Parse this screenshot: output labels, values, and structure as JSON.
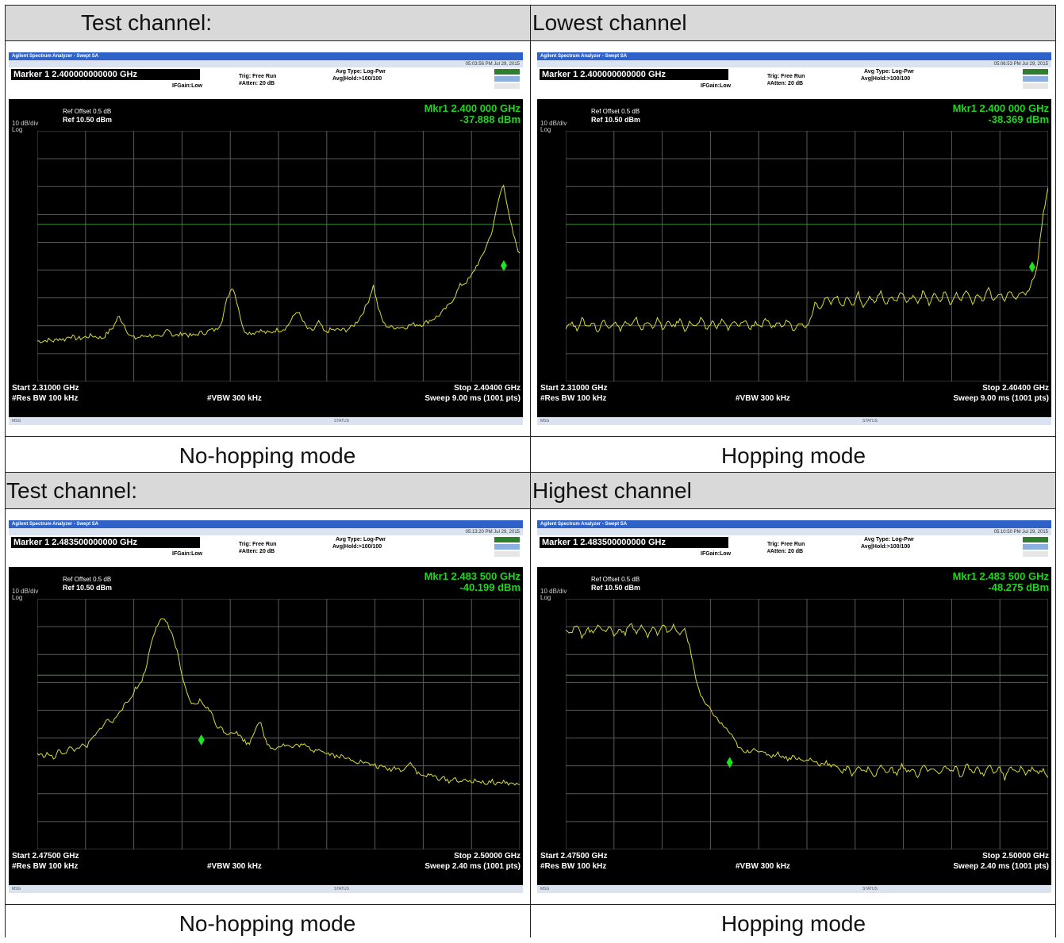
{
  "cells": [
    {
      "header": "Test channel:",
      "caption": "No-hopping mode",
      "analyzer": {
        "app_title": "Agilent Spectrum Analyzer - Swept SA",
        "marker_line": "Marker 1  2.400000000000 GHz",
        "pno": "PNO: Fast",
        "ifgain": "IFGain:Low",
        "trig": "Trig: Free Run",
        "atten": "#Atten: 20 dB",
        "avg_type": "Avg Type: Log-Pwr",
        "avg_hold": "Avg|Hold:>100/100",
        "timestamp": "05:03:56 PM Jul 29, 2015",
        "ref_offset": "Ref Offset 0.5 dB",
        "ref_level": "Ref 10.50 dBm",
        "scale": "10 dB/div",
        "log": "Log",
        "mkr_freq": "Mkr1 2.400 000 GHz",
        "mkr_level": "-37.888 dBm",
        "start": "Start 2.31000 GHz",
        "rbw": "#Res BW 100 kHz",
        "vbw": "#VBW 300 kHz",
        "stop": "Stop 2.40400 GHz",
        "sweep": "Sweep  9.00 ms (1001 pts)",
        "status": "STATUS",
        "msg": "MSG"
      },
      "chart_data": {
        "type": "line",
        "series": [
          {
            "values": [
              -65,
              -65,
              -64.5,
              -65,
              -64,
              -64.5,
              -63,
              -64,
              -64,
              -63.5,
              -63,
              -63.5,
              -64,
              -62,
              -60,
              -56,
              -59,
              -63,
              -64,
              -63.5,
              -63,
              -63,
              -63.5,
              -64,
              -60,
              -63,
              -63,
              -62,
              -63,
              -63,
              -62,
              -62,
              -61,
              -61,
              -58,
              -50,
              -45,
              -52,
              -61,
              -62,
              -62,
              -61,
              -62,
              -62,
              -61,
              -61,
              -60,
              -57,
              -54,
              -58,
              -61,
              -61,
              -58,
              -62,
              -61,
              -61,
              -61,
              -61,
              -60,
              -58,
              -55,
              -51,
              -45,
              -54,
              -59,
              -60,
              -60,
              -60,
              -60,
              -59,
              -59,
              -59,
              -58,
              -57,
              -56,
              -54,
              -52,
              -49,
              -45,
              -44,
              -42,
              -38,
              -35,
              -30,
              -25,
              -15,
              -8,
              -20,
              -28,
              -34
            ]
          }
        ],
        "x": {
          "start_ghz": 2.31,
          "stop_ghz": 2.404
        },
        "ylim": [
          -79.5,
          10.5
        ],
        "display_line_dbm": -23.12,
        "marker": {
          "x_fraction": 0.967,
          "y_dbm": -37.888
        },
        "trace_color": "#d9d93a"
      }
    },
    {
      "header": "Lowest channel",
      "caption": "Hopping mode",
      "analyzer": {
        "app_title": "Agilent Spectrum Analyzer - Swept SA",
        "marker_line": "Marker 1  2.400000000000 GHz",
        "pno": "PNO: Fast",
        "ifgain": "IFGain:Low",
        "trig": "Trig: Free Run",
        "atten": "#Atten: 20 dB",
        "avg_type": "Avg Type: Log-Pwr",
        "avg_hold": "Avg|Hold:>100/100",
        "timestamp": "05:06:53 PM Jul 29, 2015",
        "ref_offset": "Ref Offset 0.5 dB",
        "ref_level": "Ref 10.50 dBm",
        "scale": "10 dB/div",
        "log": "Log",
        "mkr_freq": "Mkr1 2.400 000 GHz",
        "mkr_level": "-38.369 dBm",
        "start": "Start 2.31000 GHz",
        "rbw": "#Res BW 100 kHz",
        "vbw": "#VBW 300 kHz",
        "stop": "Stop 2.40400 GHz",
        "sweep": "Sweep  9.00 ms (1001 pts)",
        "status": "STATUS",
        "msg": "MSG"
      },
      "chart_data": {
        "type": "line",
        "series": [
          {
            "values": [
              -60,
              -58,
              -61,
              -57,
              -60,
              -58,
              -62,
              -57,
              -60,
              -58,
              -61,
              -58,
              -60,
              -57,
              -61,
              -58,
              -60,
              -57,
              -61,
              -58,
              -60,
              -57,
              -61,
              -58,
              -60,
              -57,
              -61,
              -58,
              -60,
              -57,
              -61,
              -58,
              -60,
              -57,
              -61,
              -58,
              -60,
              -57,
              -61,
              -58,
              -60,
              -57,
              -61,
              -58,
              -60,
              -58,
              -51,
              -53,
              -49,
              -52,
              -48,
              -53,
              -49,
              -52,
              -48,
              -53,
              -49,
              -51,
              -47,
              -52,
              -49,
              -51,
              -47,
              -52,
              -48,
              -51,
              -47,
              -52,
              -48,
              -51,
              -47,
              -52,
              -48,
              -51,
              -46,
              -52,
              -48,
              -51,
              -46,
              -51,
              -48,
              -50,
              -46,
              -51,
              -47,
              -48,
              -44,
              -38,
              -20,
              -10
            ]
          }
        ],
        "x": {
          "start_ghz": 2.31,
          "stop_ghz": 2.404
        },
        "ylim": [
          -79.5,
          10.5
        ],
        "display_line_dbm": -23.12,
        "marker": {
          "x_fraction": 0.967,
          "y_dbm": -38.369
        },
        "trace_color": "#d9d93a"
      }
    },
    {
      "header": "Test channel:",
      "caption": "No-hopping mode",
      "analyzer": {
        "app_title": "Agilent Spectrum Analyzer - Swept SA",
        "marker_line": "Marker 1  2.483500000000 GHz",
        "pno": "PNO: Fast",
        "ifgain": "IFGain:Low",
        "trig": "Trig: Free Run",
        "atten": "#Atten: 20 dB",
        "avg_type": "Avg Type: Log-Pwr",
        "avg_hold": "Avg|Hold:>100/100",
        "timestamp": "05:13:20 PM Jul 29, 2015",
        "ref_offset": "Ref Offset 0.5 dB",
        "ref_level": "Ref 10.50 dBm",
        "scale": "10 dB/div",
        "log": "Log",
        "mkr_freq": "Mkr1 2.483 500 GHz",
        "mkr_level": "-40.199 dBm",
        "start": "Start 2.47500 GHz",
        "rbw": "#Res BW 100 kHz",
        "vbw": "#VBW 300 kHz",
        "stop": "Stop 2.50000 GHz",
        "sweep": "Sweep  2.40 ms (1001 pts)",
        "status": "STATUS",
        "msg": "MSG"
      },
      "chart_data": {
        "type": "line",
        "series": [
          {
            "values": [
              -45,
              -46,
              -45,
              -47,
              -44,
              -45,
              -43,
              -44,
              -42,
              -43,
              -40,
              -38,
              -35,
              -33,
              -34,
              -30,
              -28,
              -26,
              -22,
              -20,
              -15,
              -5,
              1,
              3,
              2,
              -3,
              -10,
              -20,
              -26,
              -28,
              -26,
              -28,
              -30,
              -35,
              -36,
              -38,
              -37,
              -38,
              -40,
              -42,
              -37,
              -33,
              -40,
              -43,
              -43,
              -42,
              -42,
              -43,
              -42,
              -42,
              -43,
              -44,
              -43,
              -45,
              -45,
              -46,
              -46,
              -47,
              -47,
              -48,
              -48,
              -49,
              -49,
              -50,
              -50,
              -51,
              -50,
              -51,
              -50,
              -48,
              -52,
              -53,
              -53,
              -53,
              -54,
              -54,
              -55,
              -54,
              -55,
              -55,
              -55,
              -55,
              -55,
              -56,
              -55,
              -56,
              -55,
              -56,
              -56,
              -56
            ]
          }
        ],
        "x": {
          "start_ghz": 2.475,
          "stop_ghz": 2.5
        },
        "ylim": [
          -79.5,
          10.5
        ],
        "display_line_dbm": -16.9,
        "marker": {
          "x_fraction": 0.34,
          "y_dbm": -40.199
        },
        "trace_color": "#d9d93a"
      }
    },
    {
      "header": "Highest channel",
      "caption": "Hopping mode",
      "analyzer": {
        "app_title": "Agilent Spectrum Analyzer - Swept SA",
        "marker_line": "Marker 1  2.483500000000 GHz",
        "pno": "PNO: Fast",
        "ifgain": "IFGain:Low",
        "trig": "Trig: Free Run",
        "atten": "#Atten: 20 dB",
        "avg_type": "Avg Type: Log-Pwr",
        "avg_hold": "Avg|Hold:>100/100",
        "timestamp": "05:10:50 PM Jul 29, 2015",
        "ref_offset": "Ref Offset 0.5 dB",
        "ref_level": "Ref 10.50 dBm",
        "scale": "10 dB/div",
        "log": "Log",
        "mkr_freq": "Mkr1 2.483 500 GHz",
        "mkr_level": "-48.275 dBm",
        "start": "Start 2.47500 GHz",
        "rbw": "#Res BW 100 kHz",
        "vbw": "#VBW 300 kHz",
        "stop": "Stop 2.50000 GHz",
        "sweep": "Sweep  2.40 ms (1001 pts)",
        "status": "STATUS",
        "msg": "MSG"
      },
      "chart_data": {
        "type": "line",
        "series": [
          {
            "values": [
              0,
              -2,
              1,
              -3,
              0,
              -2,
              2,
              -2,
              1,
              -3,
              0,
              -2,
              2,
              -2,
              1,
              -3,
              0,
              -2,
              2,
              -2,
              1,
              -3,
              0,
              -8,
              -18,
              -25,
              -28,
              -30,
              -33,
              -35,
              -37,
              -40,
              -43,
              -45,
              -44,
              -43,
              -45,
              -45,
              -46,
              -45,
              -46,
              -47,
              -46,
              -47,
              -48,
              -47,
              -48,
              -49,
              -48,
              -50,
              -49,
              -52,
              -50,
              -53,
              -49,
              -52,
              -50,
              -54,
              -49,
              -52,
              -50,
              -53,
              -49,
              -52,
              -50,
              -54,
              -49,
              -52,
              -50,
              -53,
              -49,
              -52,
              -50,
              -54,
              -49,
              -52,
              -50,
              -53,
              -49,
              -52,
              -50,
              -54,
              -49,
              -52,
              -50,
              -53,
              -50,
              -52,
              -51,
              -53
            ]
          }
        ],
        "x": {
          "start_ghz": 2.475,
          "stop_ghz": 2.5
        },
        "ylim": [
          -79.5,
          10.5
        ],
        "display_line_dbm": -16.9,
        "marker": {
          "x_fraction": 0.34,
          "y_dbm": -48.275
        },
        "trace_color": "#d9d93a"
      }
    }
  ]
}
